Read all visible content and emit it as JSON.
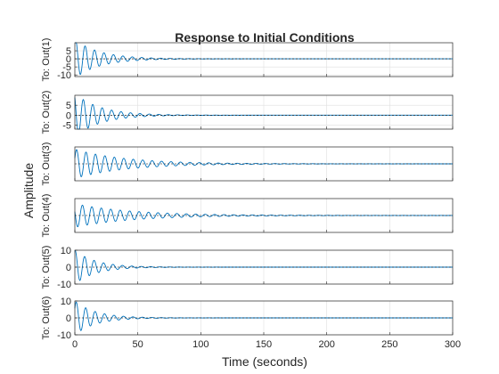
{
  "chart_data": {
    "type": "line",
    "title": "Response to Initial Conditions",
    "xlabel": "Time (seconds)",
    "ylabel": "Amplitude",
    "xlim": [
      0,
      300
    ],
    "xticks": [
      0,
      50,
      100,
      150,
      200,
      250,
      300
    ],
    "grid": true,
    "line_color": "#0072BD",
    "panels": [
      {
        "label": "To: Out(1)",
        "ylim": [
          -11,
          10
        ],
        "yticks": [
          -10,
          -5,
          0,
          5
        ],
        "amplitude": 12,
        "decay": 0.05,
        "period": 7.5,
        "phase": 1.0
      },
      {
        "label": "To: Out(2)",
        "ylim": [
          -7,
          10
        ],
        "yticks": [
          -5,
          0,
          5
        ],
        "amplitude": 11,
        "decay": 0.05,
        "period": 7.5,
        "phase": 2.2
      },
      {
        "label": "To: Out(3)",
        "ylim": [
          -6,
          6
        ],
        "yticks": [],
        "amplitude": 5.2,
        "decay": 0.025,
        "period": 7.5,
        "phase": 0.4
      },
      {
        "label": "To: Out(4)",
        "ylim": [
          -6,
          6
        ],
        "yticks": [],
        "amplitude": 4.2,
        "decay": 0.022,
        "period": 7.5,
        "phase": 2.8
      },
      {
        "label": "To: Out(5)",
        "ylim": [
          -10,
          10
        ],
        "yticks": [
          -10,
          0,
          10
        ],
        "amplitude": 10,
        "decay": 0.06,
        "period": 7.5,
        "phase": 1.3
      },
      {
        "label": "To: Out(6)",
        "ylim": [
          -10,
          10
        ],
        "yticks": [
          -10,
          0,
          10
        ],
        "amplitude": 10,
        "decay": 0.06,
        "period": 7.5,
        "phase": 0.6
      }
    ]
  }
}
